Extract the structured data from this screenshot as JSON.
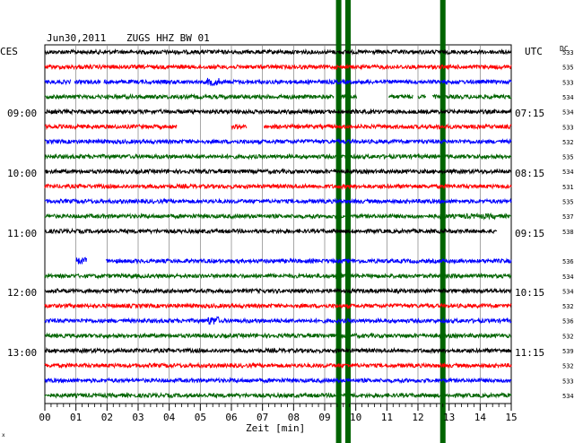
{
  "header": {
    "date": "Jun30,2011",
    "station": "ZUGS HHZ BW 01",
    "left_zone": "CES",
    "right_zone": "UTC",
    "dc_label": "DC"
  },
  "x_axis": {
    "label": "Zeit [min]",
    "ticks": [
      "00",
      "01",
      "02",
      "03",
      "04",
      "05",
      "06",
      "07",
      "08",
      "09",
      "10",
      "11",
      "12",
      "13",
      "14",
      "15"
    ],
    "range": [
      0,
      15
    ]
  },
  "left_hour_labels": [
    "09:00",
    "10:00",
    "11:00",
    "12:00",
    "13:00"
  ],
  "right_hour_labels": [
    "07:15",
    "08:15",
    "09:15",
    "10:15",
    "11:15"
  ],
  "trace_colors": [
    "#000000",
    "#ff0000",
    "#0000ff",
    "#006400"
  ],
  "event_color": "#006400",
  "events_min": [
    9.45,
    9.75,
    12.8
  ],
  "dc_values": [
    "533",
    "535",
    "533",
    "534",
    "534",
    "533",
    "532",
    "535",
    "534",
    "531",
    "535",
    "537",
    "538",
    "",
    "536",
    "534",
    "534",
    "532",
    "536",
    "532",
    "539",
    "532",
    "533",
    "534"
  ],
  "gaps": [
    {
      "line": 2,
      "from": 0.85,
      "to": 0.95
    },
    {
      "line": 2,
      "from": 1.8,
      "to": 1.9
    },
    {
      "line": 3,
      "from": 9.3,
      "to": 9.4
    },
    {
      "line": 3,
      "from": 10.05,
      "to": 11.05
    },
    {
      "line": 3,
      "from": 11.85,
      "to": 12.0
    },
    {
      "line": 3,
      "from": 12.25,
      "to": 12.45
    },
    {
      "line": 5,
      "from": 4.25,
      "to": 6.0
    },
    {
      "line": 5,
      "from": 6.5,
      "to": 7.05
    },
    {
      "line": 12,
      "from": 14.55,
      "to": 15.0
    },
    {
      "line": 13,
      "from": 0.0,
      "to": 15.0
    },
    {
      "line": 14,
      "from": 0.0,
      "to": 1.0
    },
    {
      "line": 14,
      "from": 1.35,
      "to": 1.95
    }
  ],
  "bursts": [
    {
      "line": 2,
      "from": 5.2,
      "to": 5.6,
      "amp": 2.0
    },
    {
      "line": 14,
      "from": 1.0,
      "to": 1.35,
      "amp": 1.8
    },
    {
      "line": 11,
      "from": 13.5,
      "to": 14.5,
      "amp": 1.3
    },
    {
      "line": 18,
      "from": 5.2,
      "to": 5.6,
      "amp": 2.2
    }
  ]
}
